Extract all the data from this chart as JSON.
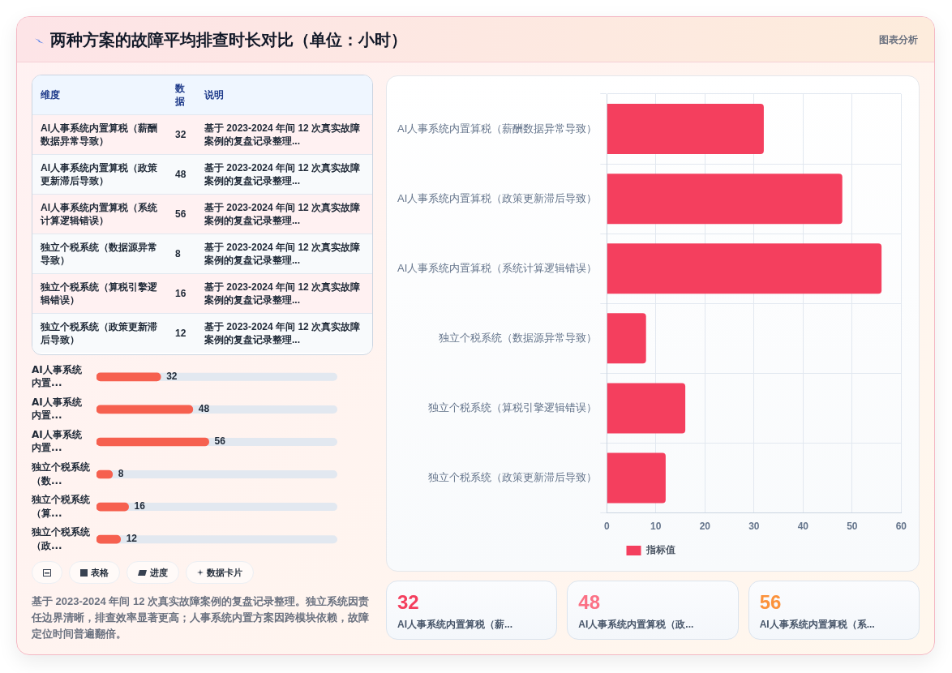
{
  "chart_data": [
    {
      "type": "other",
      "title": "两种方案的故障平均排查时长对比（单位：小时）",
      "annotations": [
        "图表分析"
      ],
      "ylabel": "维度",
      "categories": [
        "数据",
        "说明"
      ],
      "y_categories": [
        "AI人事系统内置算税（薪酬数据异常导致）",
        "AI人事系统内置算税（政策更新滞后导致）",
        "AI人事系统内置算税（系统计算逻辑错误）",
        "独立个税系统（数据源异常导致）",
        "独立个税系统（算税引擎逻辑错误）",
        "独立个税系统（政策更新滞后导致）"
      ],
      "cell_labels": [
        [
          "32",
          "基于 2023-2024 年间 12 次真实故障案例的复盘记录整理..."
        ],
        [
          "48",
          "基于 2023-2024 年间 12 次真实故障案例的复盘记录整理..."
        ],
        [
          "56",
          "基于 2023-2024 年间 12 次真实故障案例的复盘记录整理..."
        ],
        [
          "8",
          "基于 2023-2024 年间 12 次真实故障案例的复盘记录整理..."
        ],
        [
          "16",
          "基于 2023-2024 年间 12 次真实故障案例的复盘记录整理..."
        ],
        [
          "12",
          "基于 2023-2024 年间 12 次真实故障案例的复盘记录整理..."
        ]
      ]
    },
    {
      "type": "bar",
      "orientation": "horizontal",
      "categories": [
        "AI人事系统内置...",
        "AI人事系统内置...",
        "AI人事系统内置...",
        "独立个税系统（数...",
        "独立个税系统（算...",
        "独立个税系统（政..."
      ],
      "values": [
        32,
        48,
        56,
        8,
        16,
        12
      ],
      "color": "#f6604f",
      "xlim": [
        0,
        120
      ],
      "tick_labels": "y",
      "data_labels": true
    },
    {
      "type": "other",
      "categories": [
        null,
        "表格",
        "进度",
        "数据卡片"
      ],
      "annotations": [
        "基于 2023-2024 年间 12 次真实故障案例的复盘记录整理。独立系统因责任边界清晰，排查效率显著更高；人事系统内置方案因跨模块依赖，故障定位时间普遍翻倍。"
      ]
    },
    {
      "type": "bar",
      "orientation": "horizontal",
      "categories": [
        "AI人事系统内置算税（薪酬数据异常导致）",
        "AI人事系统内置算税（政策更新滞后导致）",
        "AI人事系统内置算税（系统计算逻辑错误）",
        "独立个税系统（数据源异常导致）",
        "独立个税系统（算税引擎逻辑错误）",
        "独立个税系统（政策更新滞后导致）"
      ],
      "series": [
        {
          "name": "指标值",
          "color": "#f43f5e",
          "values": [
            32,
            48,
            56,
            8,
            16,
            12
          ]
        }
      ],
      "xlim": [
        0,
        60
      ],
      "xticks": [
        0,
        10,
        20,
        30,
        40,
        50,
        60
      ],
      "grid": true,
      "legend": "bottom"
    },
    {
      "type": "other",
      "categories": [
        "AI人事系统内置算税（薪...",
        "AI人事系统内置算税（政...",
        "AI人事系统内置算税（系..."
      ],
      "values": [
        32,
        48,
        56
      ],
      "data_labels": true
    }
  ]
}
